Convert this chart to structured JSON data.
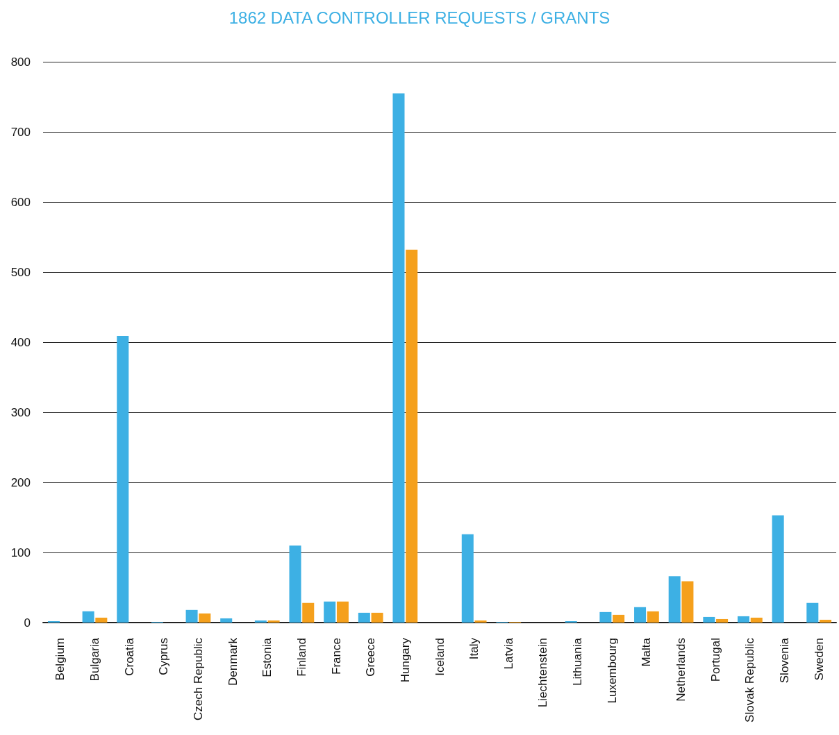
{
  "chart_data": {
    "type": "bar",
    "title": "1862 DATA CONTROLLER REQUESTS / GRANTS",
    "categories": [
      "Belgium",
      "Bulgaria",
      "Croatia",
      "Cyprus",
      "Czech Republic",
      "Denmark",
      "Estonia",
      "Finland",
      "France",
      "Greece",
      "Hungary",
      "Iceland",
      "Italy",
      "Latvia",
      "Liechtenstein",
      "Lithuania",
      "Luxembourg",
      "Malta",
      "Netherlands",
      "Portugal",
      "Slovak Republic",
      "Slovenia",
      "Sweden"
    ],
    "series": [
      {
        "color": "#3db0e4",
        "values": [
          2,
          16,
          409,
          1,
          18,
          6,
          3,
          110,
          30,
          14,
          755,
          0,
          126,
          1,
          0,
          2,
          15,
          22,
          66,
          8,
          9,
          153,
          28
        ]
      },
      {
        "color": "#f5a01c",
        "values": [
          0,
          7,
          0,
          0,
          13,
          0,
          3,
          28,
          30,
          14,
          532,
          0,
          3,
          1,
          0,
          0,
          11,
          16,
          59,
          5,
          7,
          0,
          4
        ]
      }
    ],
    "ylim": [
      0,
      800
    ],
    "yticks": [
      0,
      100,
      200,
      300,
      400,
      500,
      600,
      700,
      800
    ],
    "grid": "y"
  }
}
